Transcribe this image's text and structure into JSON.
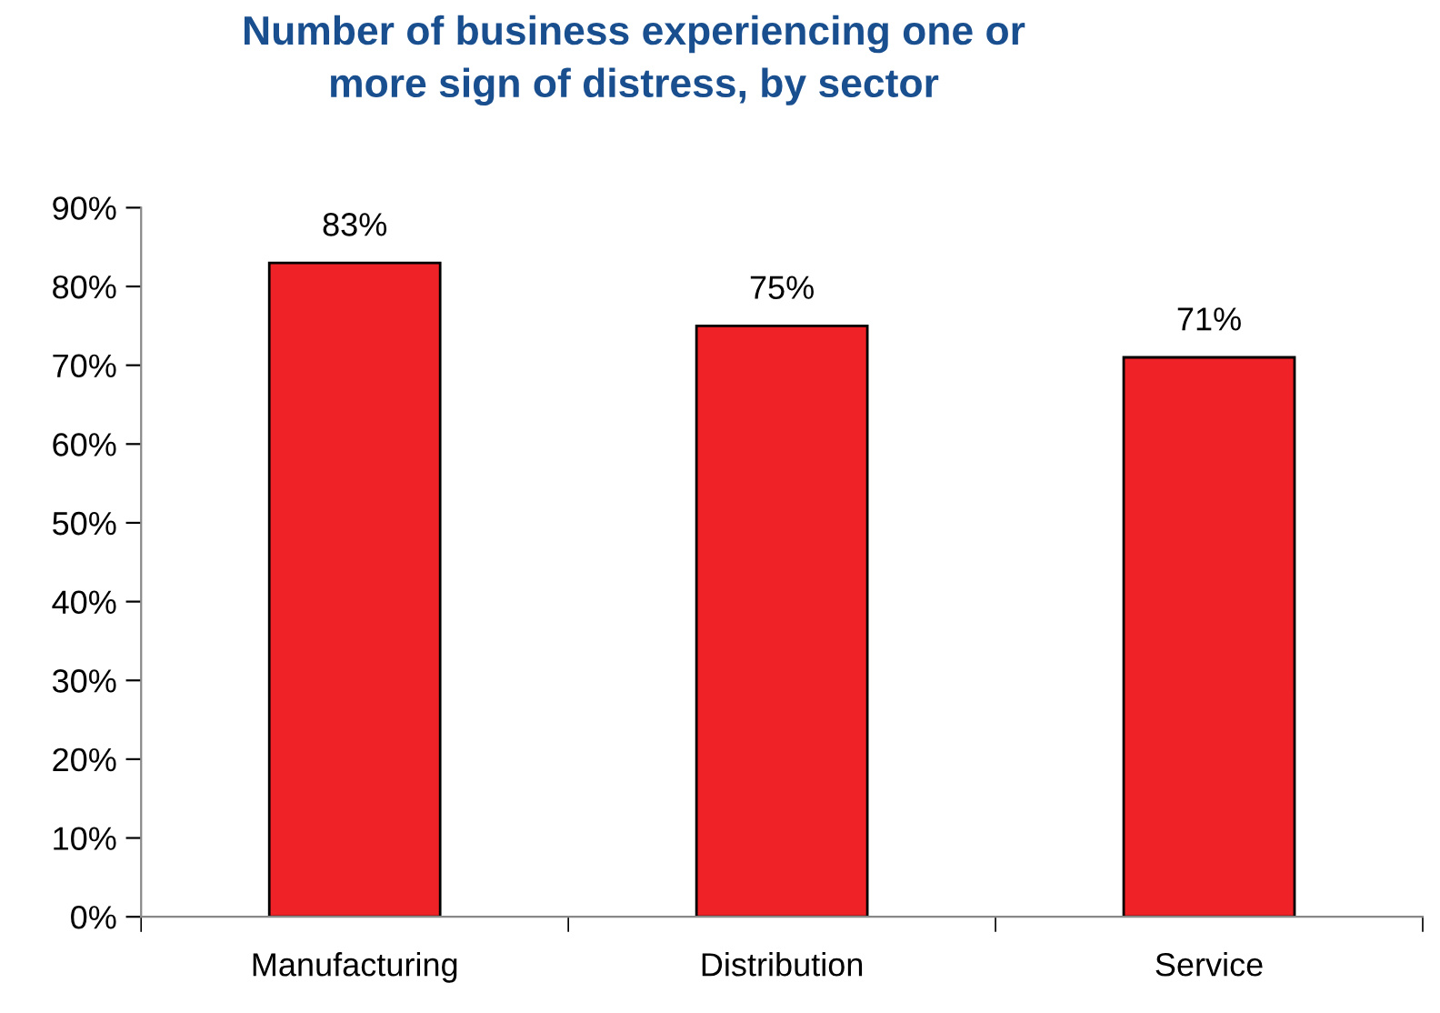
{
  "chart_data": {
    "type": "bar",
    "title": "Number of business experiencing one or\nmore sign of distress, by sector",
    "categories": [
      "Manufacturing",
      "Distribution",
      "Service"
    ],
    "values": [
      83,
      75,
      71
    ],
    "color": "#ee2227",
    "value_labels": [
      "83%",
      "75%",
      "71%"
    ],
    "ylim": [
      0,
      90
    ],
    "yticks": [
      {
        "value": 0,
        "label": "0%"
      },
      {
        "value": 10,
        "label": "10%"
      },
      {
        "value": 20,
        "label": "20%"
      },
      {
        "value": 30,
        "label": "30%"
      },
      {
        "value": 40,
        "label": "40%"
      },
      {
        "value": 50,
        "label": "50%"
      },
      {
        "value": 60,
        "label": "60%"
      },
      {
        "value": 70,
        "label": "70%"
      },
      {
        "value": 80,
        "label": "80%"
      },
      {
        "value": 90,
        "label": "90%"
      }
    ],
    "grid": false,
    "legend": false
  }
}
